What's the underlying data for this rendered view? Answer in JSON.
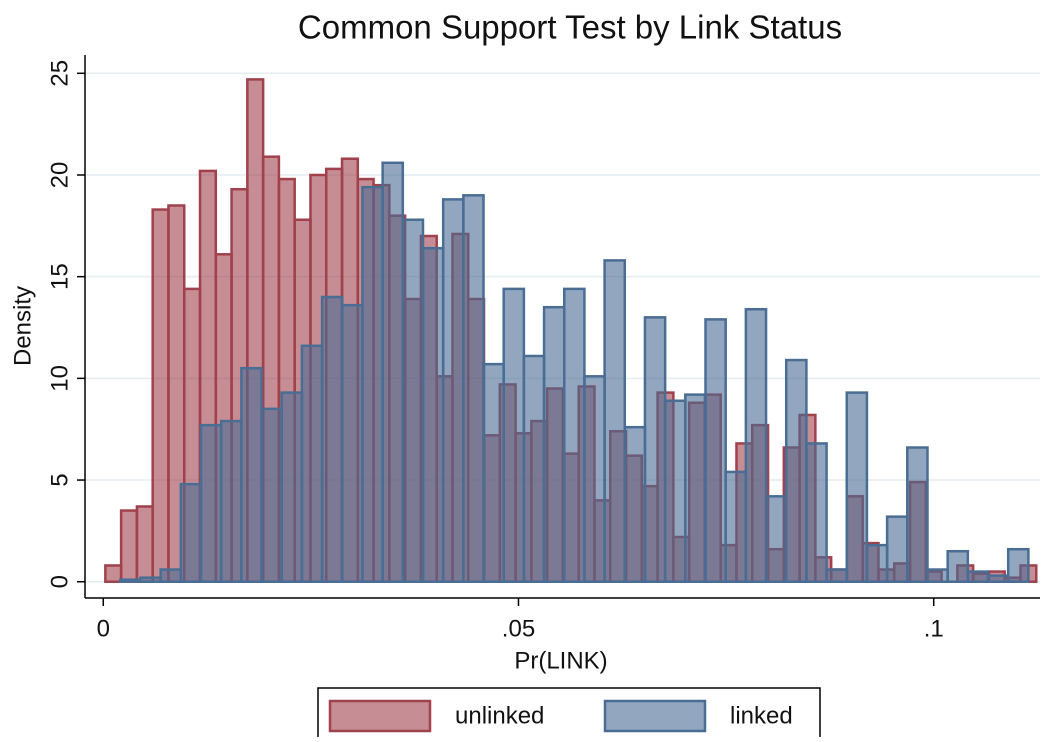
{
  "chart_data": {
    "type": "histogram",
    "title": "Common Support Test by Link Status",
    "x_label": "Pr(LINK)",
    "y_label": "Density",
    "xlim": [
      -0.0022,
      0.1128
    ],
    "ylim": [
      -0.8,
      25.9
    ],
    "xticks": [
      0,
      {
        "value": 0.05,
        "label": ".05"
      },
      {
        "value": 0.1,
        "label": ".1"
      }
    ],
    "yticks": [
      0,
      5,
      10,
      15,
      20,
      25
    ],
    "grid": true,
    "legend": "bottom",
    "series": [
      {
        "name": "unlinked",
        "color": "#a0414c",
        "bins": [
          0.00025,
          0.00215,
          0.00405,
          0.00595,
          0.00785,
          0.00975,
          0.01165,
          0.01355,
          0.01545,
          0.01735,
          0.01925,
          0.02115,
          0.02305,
          0.02495,
          0.02685,
          0.02875,
          0.03065,
          0.03255,
          0.03445,
          0.03635,
          0.03825,
          0.04015,
          0.04205,
          0.04395,
          0.04585,
          0.04775,
          0.04965,
          0.05155,
          0.05345,
          0.05535,
          0.05725,
          0.05915,
          0.06105,
          0.06295,
          0.06485,
          0.06675,
          0.06865,
          0.07055,
          0.07245,
          0.07435,
          0.07625,
          0.07815,
          0.08005,
          0.08195,
          0.08385,
          0.08575,
          0.08765,
          0.08955,
          0.09145,
          0.09335,
          0.09525,
          0.09715,
          0.09905,
          0.10095,
          0.10285,
          0.10475,
          0.10665,
          0.10855,
          0.11045,
          0.11235
        ],
        "values": [
          0.8,
          3.5,
          3.7,
          18.3,
          18.5,
          14.4,
          20.2,
          16.1,
          19.3,
          24.7,
          20.9,
          19.8,
          17.8,
          20.0,
          20.3,
          20.8,
          19.8,
          19.5,
          18.0,
          13.9,
          17.0,
          10.1,
          17.1,
          13.9,
          7.2,
          9.7,
          7.3,
          7.9,
          9.5,
          6.3,
          9.6,
          4.0,
          7.4,
          6.2,
          4.7,
          9.3,
          2.2,
          8.8,
          9.2,
          1.8,
          6.8,
          7.7,
          1.6,
          6.6,
          8.2,
          1.2,
          0.6,
          4.2,
          1.9,
          0.6,
          0.9,
          4.9,
          0.5,
          0.0,
          0.8,
          0.4,
          0.5,
          0.2,
          0.8
        ]
      },
      {
        "name": "linked",
        "color": "#4a6d94",
        "bins": [
          0.00205,
          0.00448,
          0.00691,
          0.00934,
          0.01177,
          0.0142,
          0.01663,
          0.01906,
          0.02149,
          0.02392,
          0.02635,
          0.02878,
          0.03121,
          0.03364,
          0.03607,
          0.0385,
          0.04093,
          0.04336,
          0.04579,
          0.04822,
          0.05065,
          0.05308,
          0.05551,
          0.05794,
          0.06037,
          0.0628,
          0.06523,
          0.06766,
          0.07009,
          0.07252,
          0.07495,
          0.07738,
          0.07981,
          0.08224,
          0.08467,
          0.0871,
          0.08953,
          0.09196,
          0.09439,
          0.09682,
          0.09925,
          0.10168,
          0.10411,
          0.10654,
          0.10897,
          0.1114
        ],
        "values": [
          0.1,
          0.2,
          0.6,
          4.8,
          7.7,
          7.9,
          10.5,
          8.5,
          9.3,
          11.6,
          14.0,
          13.6,
          19.4,
          20.6,
          17.8,
          16.4,
          18.8,
          19.0,
          10.7,
          14.4,
          11.1,
          13.5,
          14.4,
          10.1,
          15.8,
          7.6,
          13.0,
          8.9,
          9.2,
          12.9,
          5.4,
          13.4,
          4.2,
          10.9,
          6.8,
          0.6,
          9.3,
          1.8,
          3.2,
          6.6,
          0.6,
          1.5,
          0.5,
          0.3,
          1.6
        ]
      }
    ]
  }
}
